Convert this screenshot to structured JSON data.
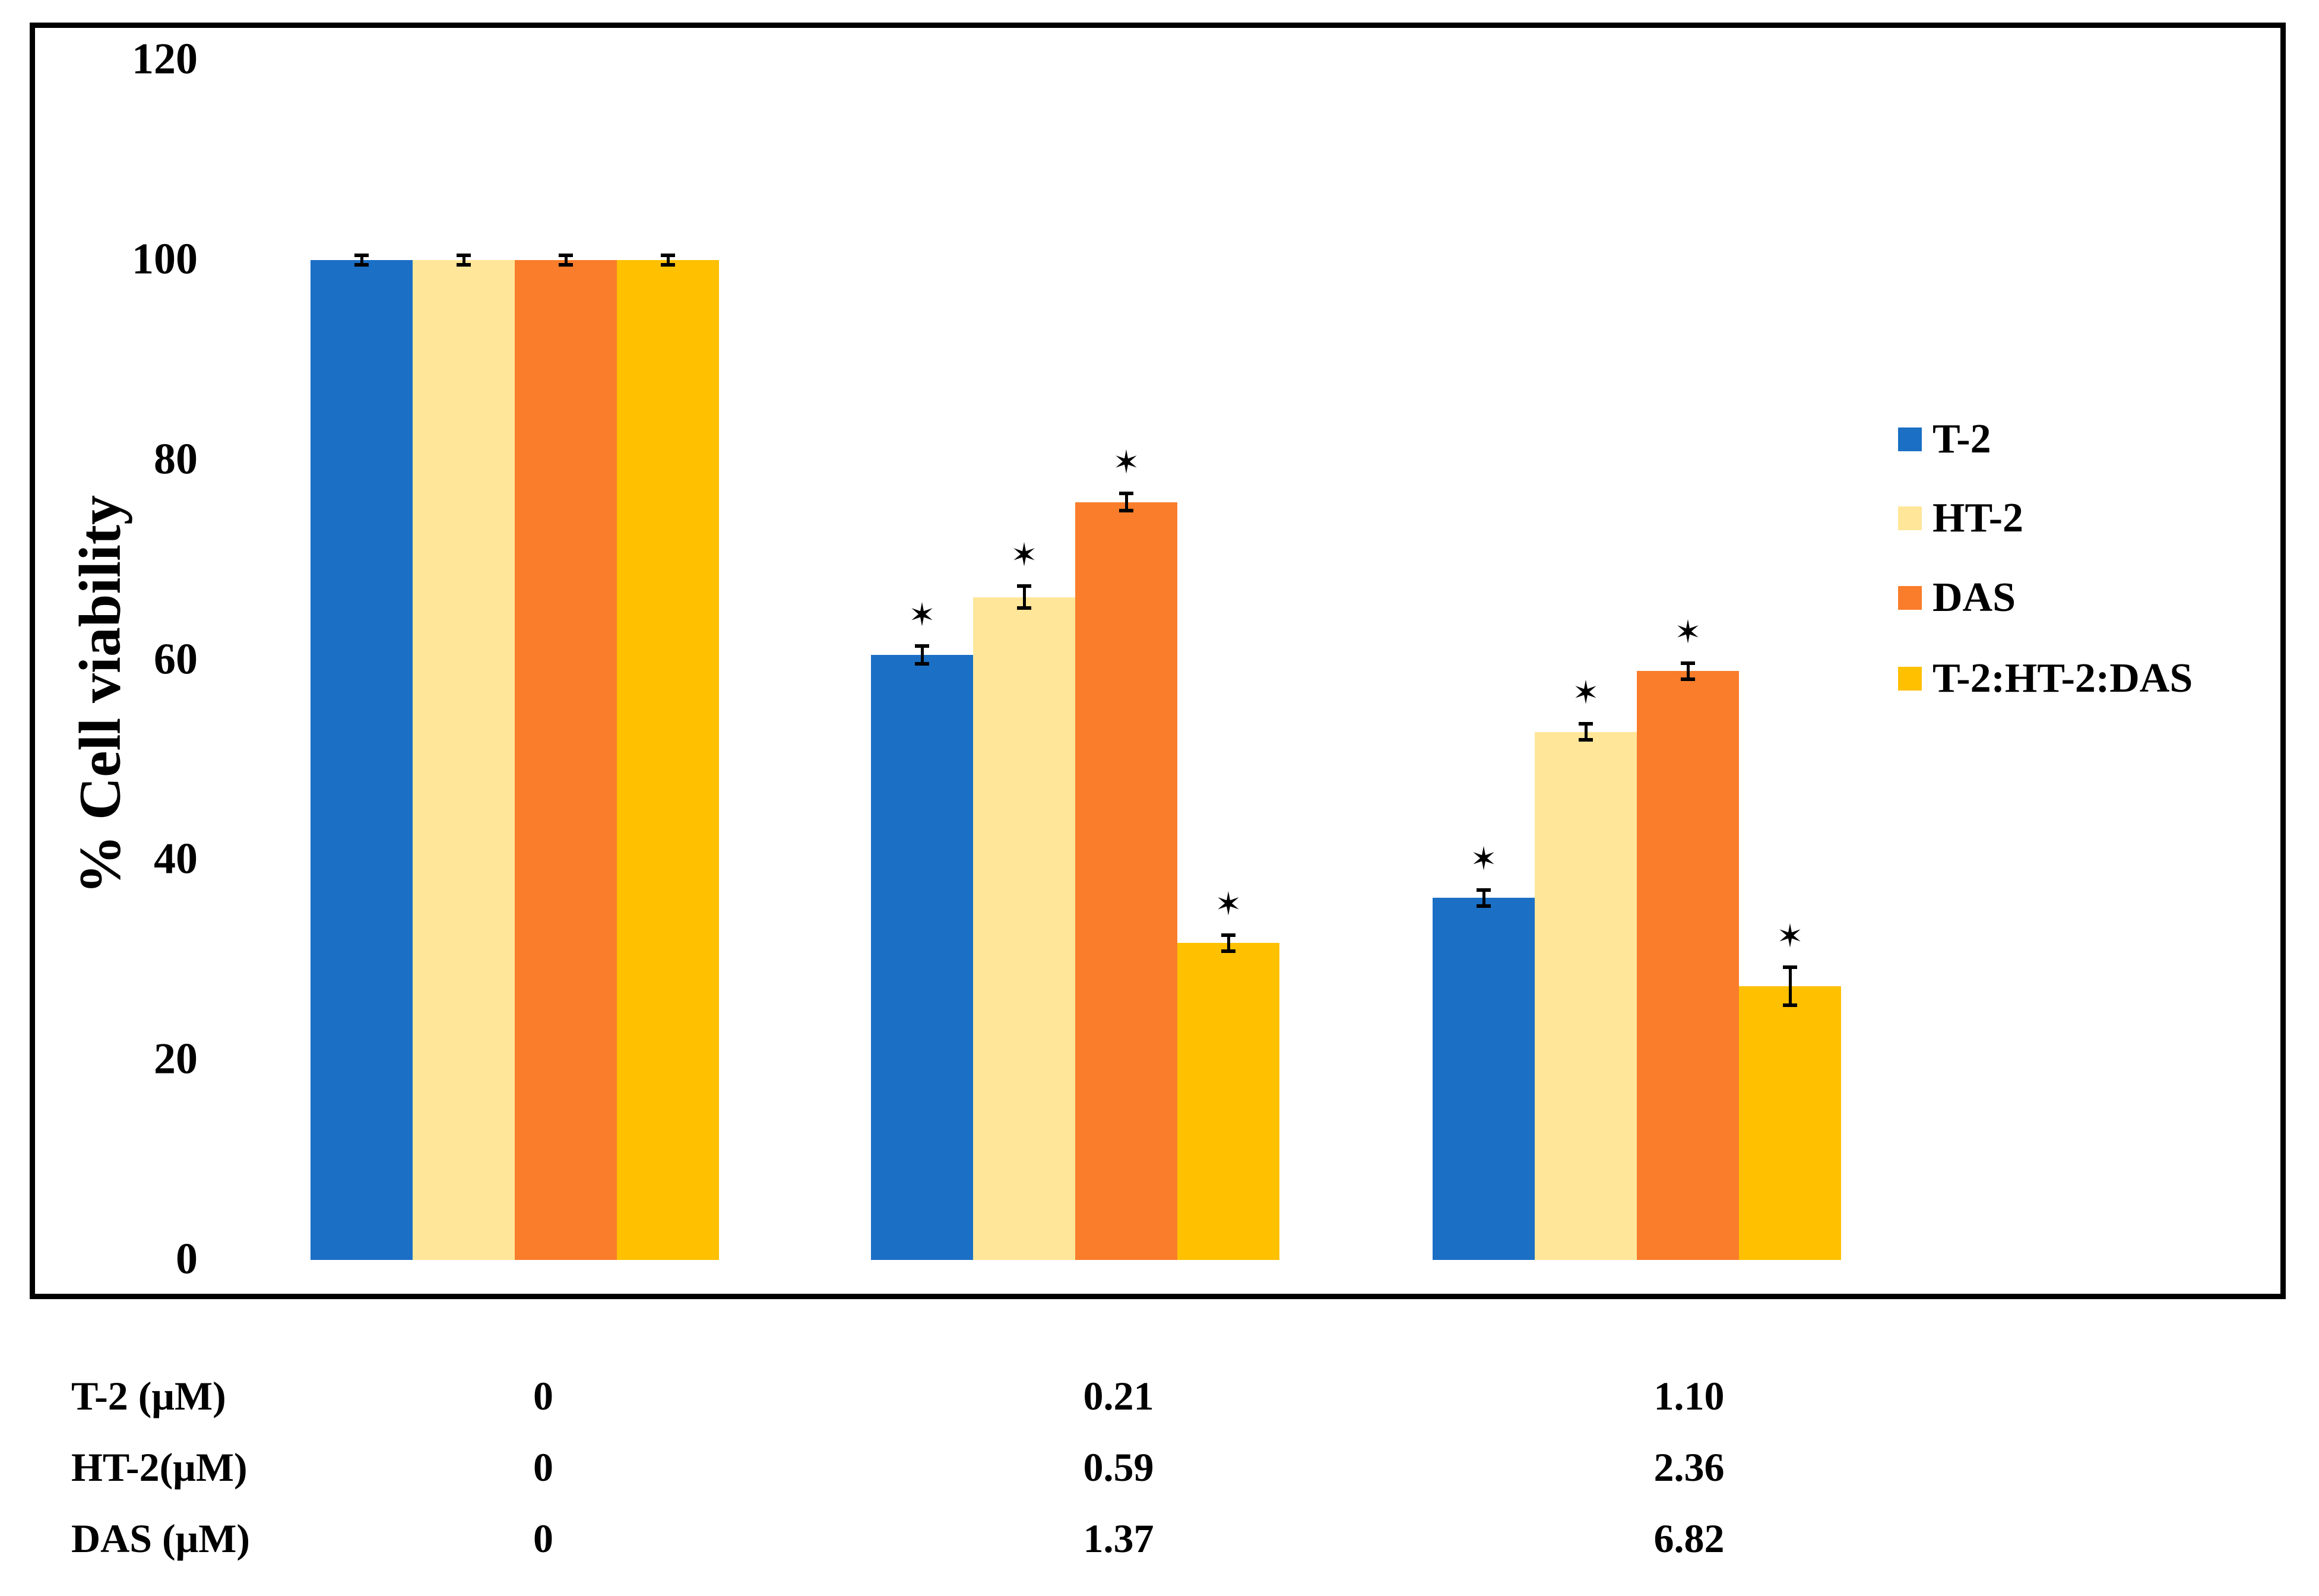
{
  "chart_data": {
    "type": "bar",
    "title": "",
    "xlabel": "",
    "ylabel": "% Cell viability",
    "ylim": [
      0,
      120
    ],
    "yticks": [
      120,
      100,
      80,
      60,
      40,
      20,
      0
    ],
    "grid": false,
    "legend_position": "right-inside",
    "significance_marker": "✶",
    "categories": [
      "0",
      "0.21 / 0.59 / 1.37",
      "1.10 / 2.36 / 6.82"
    ],
    "series": [
      {
        "name": "T-2",
        "color": "#1B6FC5",
        "values": [
          100,
          60.5,
          36.2
        ],
        "errors": [
          0.5,
          0.9,
          0.8
        ],
        "significant": [
          false,
          true,
          true
        ]
      },
      {
        "name": "HT-2",
        "color": "#FFE699",
        "values": [
          100,
          66.3,
          52.8
        ],
        "errors": [
          0.5,
          1.1,
          0.8
        ],
        "significant": [
          false,
          true,
          true
        ]
      },
      {
        "name": "DAS",
        "color": "#F97D2B",
        "values": [
          100,
          75.8,
          58.9
        ],
        "errors": [
          0.5,
          0.85,
          0.8
        ],
        "significant": [
          false,
          true,
          true
        ]
      },
      {
        "name": "T-2:HT-2:DAS",
        "color": "#FFC000",
        "values": [
          100,
          31.7,
          27.4
        ],
        "errors": [
          0.5,
          0.8,
          1.9
        ],
        "significant": [
          false,
          true,
          true
        ]
      }
    ]
  },
  "concentration_table": {
    "rows": [
      {
        "label": "T-2 (μM)",
        "values": [
          "0",
          "0.21",
          "1.10"
        ]
      },
      {
        "label": "HT-2(μM)",
        "values": [
          "0",
          "0.59",
          "2.36"
        ]
      },
      {
        "label": "DAS (μM)",
        "values": [
          "0",
          "1.37",
          "6.82"
        ]
      }
    ]
  }
}
